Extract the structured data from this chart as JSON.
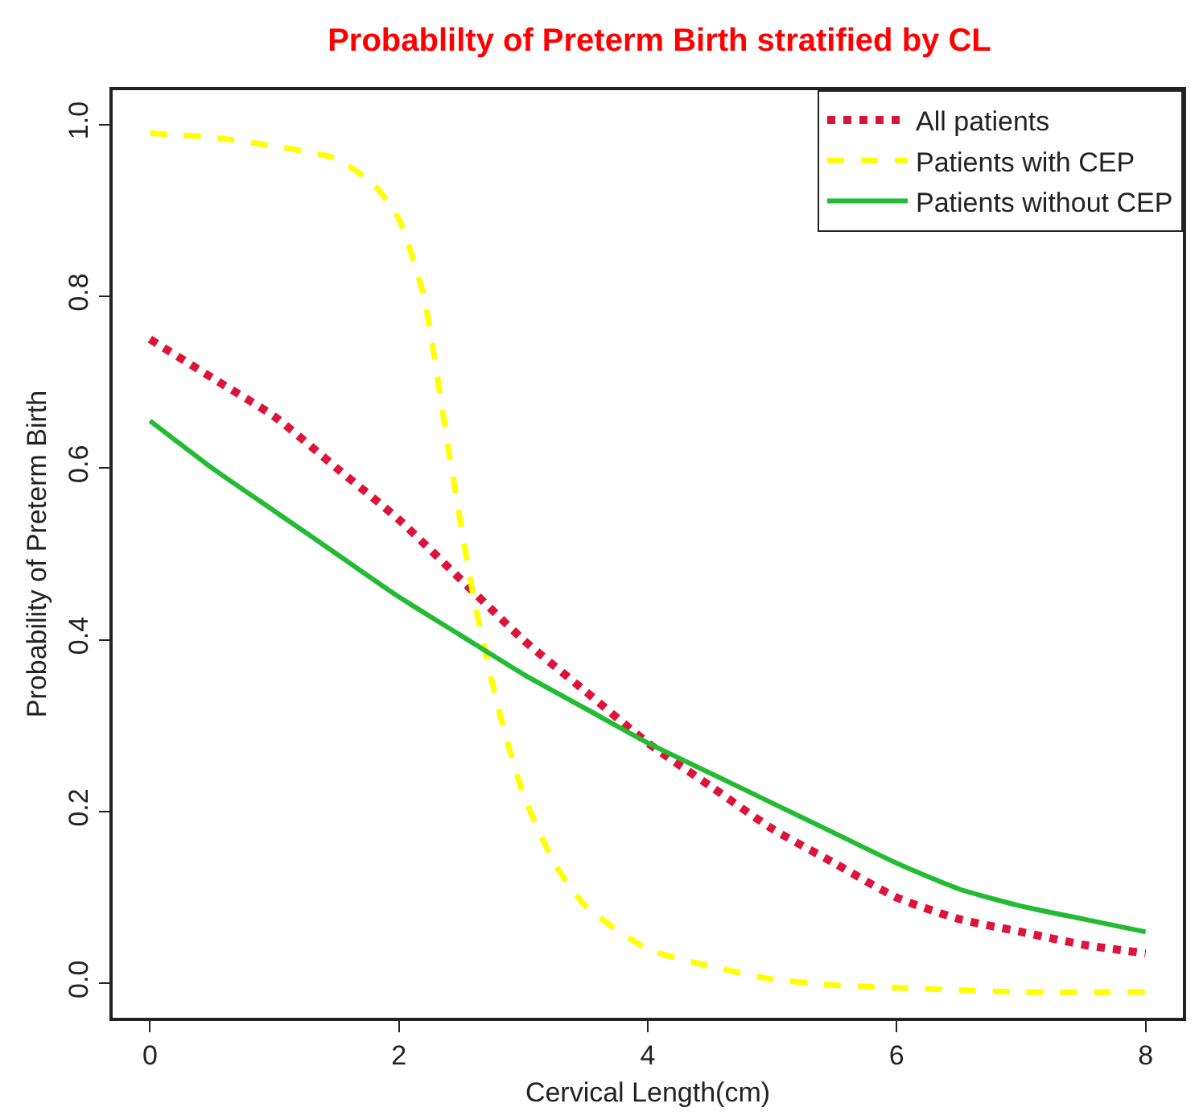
{
  "chart_data": {
    "type": "line",
    "title": "Probablilty of Preterm Birth stratified by CL",
    "xlabel": "Cervical Length(cm)",
    "ylabel": "Probability of Preterm Birth",
    "xlim": [
      -0.3,
      8.3
    ],
    "ylim": [
      -0.04,
      1.04
    ],
    "xticks": [
      0,
      2,
      4,
      6,
      8
    ],
    "yticks": [
      {
        "value": 0,
        "label": "0.0"
      },
      {
        "value": 0.2,
        "label": "0.2"
      },
      {
        "value": 0.4,
        "label": "0.4"
      },
      {
        "value": 0.6,
        "label": "0.6"
      },
      {
        "value": 0.8,
        "label": "0.8"
      },
      {
        "value": 1,
        "label": "1.0"
      }
    ],
    "legend": "top right",
    "marker": "none",
    "series": [
      {
        "name": "All patients",
        "color": "#dc143c",
        "line_style": "dotted",
        "x": [
          0,
          0.5,
          1,
          1.5,
          2,
          2.5,
          3,
          3.5,
          4,
          4.5,
          5,
          5.5,
          6,
          6.5,
          7,
          7.5,
          8
        ],
        "values": [
          0.75,
          0.705,
          0.66,
          0.6,
          0.54,
          0.47,
          0.4,
          0.34,
          0.28,
          0.23,
          0.18,
          0.14,
          0.1,
          0.075,
          0.06,
          0.045,
          0.035
        ]
      },
      {
        "name": "Patients with CEP",
        "color": "#ffff00",
        "line_style": "dashed",
        "x": [
          0,
          0.5,
          1,
          1.5,
          1.8,
          2,
          2.2,
          2.4,
          2.6,
          2.8,
          3,
          3.25,
          3.5,
          4,
          4.5,
          5,
          5.5,
          6,
          7,
          8
        ],
        "values": [
          0.99,
          0.985,
          0.975,
          0.96,
          0.93,
          0.89,
          0.8,
          0.62,
          0.45,
          0.32,
          0.22,
          0.14,
          0.09,
          0.04,
          0.02,
          0.005,
          -0.002,
          -0.005,
          -0.01,
          -0.01
        ]
      },
      {
        "name": "Patients without CEP",
        "color": "#22bb33",
        "line_style": "solid",
        "x": [
          0,
          0.5,
          1,
          1.5,
          2,
          2.5,
          3,
          3.5,
          4,
          4.5,
          5,
          5.5,
          6,
          6.5,
          7,
          7.5,
          8
        ],
        "values": [
          0.655,
          0.6,
          0.55,
          0.5,
          0.45,
          0.405,
          0.36,
          0.32,
          0.28,
          0.245,
          0.21,
          0.175,
          0.14,
          0.11,
          0.09,
          0.075,
          0.06
        ]
      }
    ]
  }
}
